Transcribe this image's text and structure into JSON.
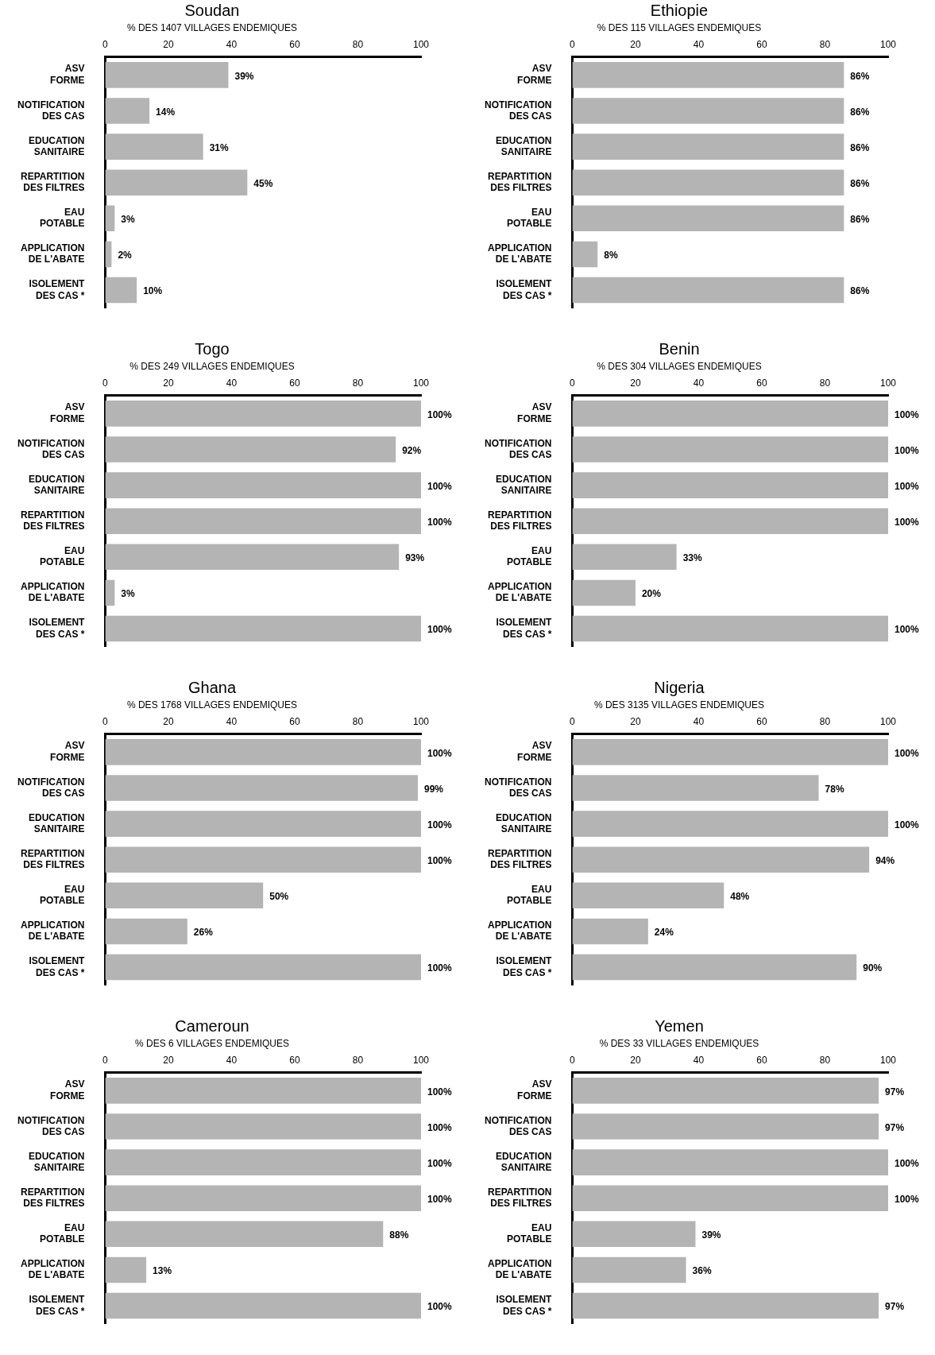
{
  "chart_data": [
    {
      "type": "bar",
      "orientation": "horizontal",
      "title": "Soudan",
      "subtitle": "% DES 1407 VILLAGES ENDEMIQUES",
      "categories": [
        "ASV FORME",
        "NOTIFICATION DES CAS",
        "EDUCATION SANITAIRE",
        "REPARTITION DES FILTRES",
        "EAU POTABLE",
        "APPLICATION DE L'ABATE",
        "ISOLEMENT DES CAS *"
      ],
      "values": [
        39,
        14,
        31,
        45,
        3,
        2,
        10
      ],
      "value_labels": [
        "39%",
        "14%",
        "31%",
        "45%",
        "3%",
        "2%",
        "10%"
      ],
      "color": "#b4b4b4",
      "xlim": [
        0,
        100
      ],
      "xticks": [
        0,
        20,
        40,
        60,
        80,
        100
      ],
      "grid": false,
      "legend": false
    },
    {
      "type": "bar",
      "orientation": "horizontal",
      "title": "Ethiopie",
      "subtitle": "% DES 115 VILLAGES ENDEMIQUES",
      "categories": [
        "ASV FORME",
        "NOTIFICATION DES CAS",
        "EDUCATION SANITAIRE",
        "REPARTITION DES FILTRES",
        "EAU POTABLE",
        "APPLICATION DE L'ABATE",
        "ISOLEMENT DES CAS *"
      ],
      "values": [
        86,
        86,
        86,
        86,
        86,
        8,
        86
      ],
      "value_labels": [
        "86%",
        "86%",
        "86%",
        "86%",
        "86%",
        "8%",
        "86%"
      ],
      "color": "#b4b4b4",
      "xlim": [
        0,
        100
      ],
      "xticks": [
        0,
        20,
        40,
        60,
        80,
        100
      ],
      "grid": false,
      "legend": false
    },
    {
      "type": "bar",
      "orientation": "horizontal",
      "title": "Togo",
      "subtitle": "% DES 249 VILLAGES ENDEMIQUES",
      "categories": [
        "ASV FORME",
        "NOTIFICATION DES CAS",
        "EDUCATION SANITAIRE",
        "REPARTITION DES FILTRES",
        "EAU POTABLE",
        "APPLICATION DE L'ABATE",
        "ISOLEMENT DES CAS *"
      ],
      "values": [
        100,
        92,
        100,
        100,
        93,
        3,
        100
      ],
      "value_labels": [
        "100%",
        "92%",
        "100%",
        "100%",
        "93%",
        "3%",
        "100%"
      ],
      "color": "#b4b4b4",
      "xlim": [
        0,
        100
      ],
      "xticks": [
        0,
        20,
        40,
        60,
        80,
        100
      ],
      "grid": false,
      "legend": false
    },
    {
      "type": "bar",
      "orientation": "horizontal",
      "title": "Benin",
      "subtitle": "% DES 304 VILLAGES ENDEMIQUES",
      "categories": [
        "ASV FORME",
        "NOTIFICATION DES CAS",
        "EDUCATION SANITAIRE",
        "REPARTITION DES FILTRES",
        "EAU POTABLE",
        "APPLICATION DE L'ABATE",
        "ISOLEMENT DES CAS *"
      ],
      "values": [
        100,
        100,
        100,
        100,
        33,
        20,
        100
      ],
      "value_labels": [
        "100%",
        "100%",
        "100%",
        "100%",
        "33%",
        "20%",
        "100%"
      ],
      "color": "#b4b4b4",
      "xlim": [
        0,
        100
      ],
      "xticks": [
        0,
        20,
        40,
        60,
        80,
        100
      ],
      "grid": false,
      "legend": false
    },
    {
      "type": "bar",
      "orientation": "horizontal",
      "title": "Ghana",
      "subtitle": "% DES 1768 VILLAGES ENDEMIQUES",
      "categories": [
        "ASV FORME",
        "NOTIFICATION DES CAS",
        "EDUCATION SANITAIRE",
        "REPARTITION DES FILTRES",
        "EAU POTABLE",
        "APPLICATION DE L'ABATE",
        "ISOLEMENT DES CAS *"
      ],
      "values": [
        100,
        99,
        100,
        100,
        50,
        26,
        100
      ],
      "value_labels": [
        "100%",
        "99%",
        "100%",
        "100%",
        "50%",
        "26%",
        "100%"
      ],
      "color": "#b4b4b4",
      "xlim": [
        0,
        100
      ],
      "xticks": [
        0,
        20,
        40,
        60,
        80,
        100
      ],
      "grid": false,
      "legend": false
    },
    {
      "type": "bar",
      "orientation": "horizontal",
      "title": "Nigeria",
      "subtitle": "% DES 3135 VILLAGES ENDEMIQUES",
      "categories": [
        "ASV FORME",
        "NOTIFICATION DES CAS",
        "EDUCATION SANITAIRE",
        "REPARTITION DES FILTRES",
        "EAU POTABLE",
        "APPLICATION DE L'ABATE",
        "ISOLEMENT DES CAS *"
      ],
      "values": [
        100,
        78,
        100,
        94,
        48,
        24,
        90
      ],
      "value_labels": [
        "100%",
        "78%",
        "100%",
        "94%",
        "48%",
        "24%",
        "90%"
      ],
      "color": "#b4b4b4",
      "xlim": [
        0,
        100
      ],
      "xticks": [
        0,
        20,
        40,
        60,
        80,
        100
      ],
      "grid": false,
      "legend": false
    },
    {
      "type": "bar",
      "orientation": "horizontal",
      "title": "Cameroun",
      "subtitle": "% DES 6 VILLAGES ENDEMIQUES",
      "categories": [
        "ASV FORME",
        "NOTIFICATION DES CAS",
        "EDUCATION SANITAIRE",
        "REPARTITION DES FILTRES",
        "EAU POTABLE",
        "APPLICATION DE L'ABATE",
        "ISOLEMENT DES CAS *"
      ],
      "values": [
        100,
        100,
        100,
        100,
        88,
        13,
        100
      ],
      "value_labels": [
        "100%",
        "100%",
        "100%",
        "100%",
        "88%",
        "13%",
        "100%"
      ],
      "color": "#b4b4b4",
      "xlim": [
        0,
        100
      ],
      "xticks": [
        0,
        20,
        40,
        60,
        80,
        100
      ],
      "grid": false,
      "legend": false
    },
    {
      "type": "bar",
      "orientation": "horizontal",
      "title": "Yemen",
      "subtitle": "% DES 33 VILLAGES ENDEMIQUES",
      "categories": [
        "ASV FORME",
        "NOTIFICATION DES CAS",
        "EDUCATION SANITAIRE",
        "REPARTITION DES FILTRES",
        "EAU POTABLE",
        "APPLICATION DE L'ABATE",
        "ISOLEMENT DES CAS *"
      ],
      "values": [
        97,
        97,
        100,
        100,
        39,
        36,
        97
      ],
      "value_labels": [
        "97%",
        "97%",
        "100%",
        "100%",
        "39%",
        "36%",
        "97%"
      ],
      "color": "#b4b4b4",
      "xlim": [
        0,
        100
      ],
      "xticks": [
        0,
        20,
        40,
        60,
        80,
        100
      ],
      "grid": false,
      "legend": false
    }
  ]
}
